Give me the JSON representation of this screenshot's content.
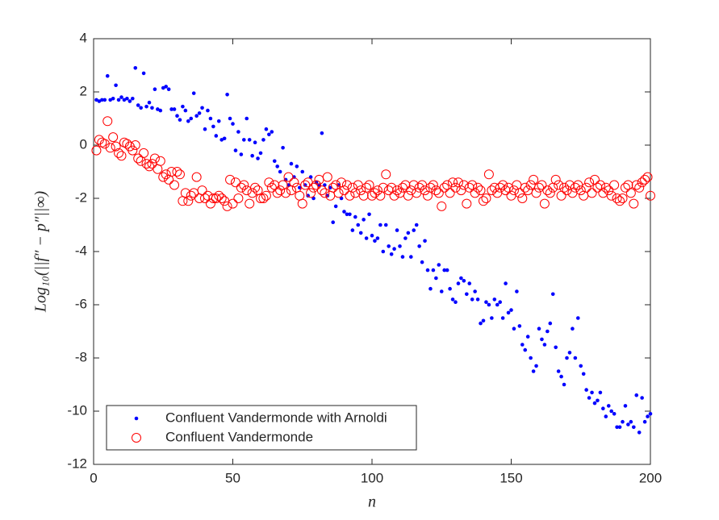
{
  "chart_data": {
    "type": "scatter",
    "x_label": "n",
    "y_label": "Log₁₀(||f″ − p″||∞)",
    "xlim": [
      0,
      200
    ],
    "xticks": [
      0,
      50,
      100,
      150,
      200
    ],
    "ylim": [
      -12,
      4
    ],
    "yticks": [
      -12,
      -10,
      -8,
      -6,
      -4,
      -2,
      0,
      2,
      4
    ],
    "grid": false,
    "legend": "lower left",
    "x": [
      1,
      2,
      3,
      4,
      5,
      6,
      7,
      8,
      9,
      10,
      11,
      12,
      13,
      14,
      15,
      16,
      17,
      18,
      19,
      20,
      21,
      22,
      23,
      24,
      25,
      26,
      27,
      28,
      29,
      30,
      31,
      32,
      33,
      34,
      35,
      36,
      37,
      38,
      39,
      40,
      41,
      42,
      43,
      44,
      45,
      46,
      47,
      48,
      49,
      50,
      51,
      52,
      53,
      54,
      55,
      56,
      57,
      58,
      59,
      60,
      61,
      62,
      63,
      64,
      65,
      66,
      67,
      68,
      69,
      70,
      71,
      72,
      73,
      74,
      75,
      76,
      77,
      78,
      79,
      80,
      81,
      82,
      83,
      84,
      85,
      86,
      87,
      88,
      89,
      90,
      91,
      92,
      93,
      94,
      95,
      96,
      97,
      98,
      99,
      100,
      101,
      102,
      103,
      104,
      105,
      106,
      107,
      108,
      109,
      110,
      111,
      112,
      113,
      114,
      115,
      116,
      117,
      118,
      119,
      120,
      121,
      122,
      123,
      124,
      125,
      126,
      127,
      128,
      129,
      130,
      131,
      132,
      133,
      134,
      135,
      136,
      137,
      138,
      139,
      140,
      141,
      142,
      143,
      144,
      145,
      146,
      147,
      148,
      149,
      150,
      151,
      152,
      153,
      154,
      155,
      156,
      157,
      158,
      159,
      160,
      161,
      162,
      163,
      164,
      165,
      166,
      167,
      168,
      169,
      170,
      171,
      172,
      173,
      174,
      175,
      176,
      177,
      178,
      179,
      180,
      181,
      182,
      183,
      184,
      185,
      186,
      187,
      188,
      189,
      190,
      191,
      192,
      193,
      194,
      195,
      196,
      197,
      198,
      199,
      200
    ],
    "series": [
      {
        "name": "Confluent Vandermonde with Arnoldi",
        "color": "#0000ff",
        "marker": "dot",
        "values": [
          1.7,
          1.65,
          1.7,
          1.7,
          2.6,
          1.7,
          1.75,
          2.25,
          1.7,
          1.8,
          1.7,
          1.75,
          1.65,
          1.75,
          2.9,
          1.5,
          1.4,
          2.7,
          1.45,
          1.6,
          1.4,
          2.1,
          1.35,
          1.3,
          2.15,
          2.2,
          2.1,
          1.35,
          1.35,
          1.1,
          0.95,
          1.45,
          1.3,
          0.9,
          1.0,
          1.95,
          1.1,
          1.2,
          1.4,
          0.6,
          1.3,
          1.0,
          0.7,
          0.35,
          0.9,
          0.2,
          0.25,
          1.9,
          1.0,
          0.8,
          -0.2,
          0.5,
          -0.35,
          0.2,
          1.0,
          0.2,
          -0.4,
          0.1,
          -0.5,
          -0.3,
          0.2,
          0.6,
          0.4,
          0.5,
          -0.6,
          -0.8,
          -1.0,
          -0.1,
          -1.3,
          -1.5,
          -0.7,
          -1.2,
          -0.8,
          -1.6,
          -1.0,
          -1.5,
          -1.9,
          -1.2,
          -2.0,
          -1.4,
          -1.5,
          0.45,
          -1.5,
          -1.9,
          -1.6,
          -2.9,
          -2.3,
          -1.5,
          -2.0,
          -2.5,
          -2.6,
          -2.6,
          -3.2,
          -2.7,
          -3.0,
          -3.3,
          -2.8,
          -3.5,
          -2.6,
          -3.4,
          -3.6,
          -3.5,
          -3.0,
          -4.0,
          -3.0,
          -3.8,
          -4.1,
          -3.9,
          -3.2,
          -3.8,
          -4.2,
          -3.5,
          -3.3,
          -4.2,
          -3.2,
          -3.0,
          -3.8,
          -4.4,
          -3.6,
          -4.7,
          -5.4,
          -4.7,
          -5.0,
          -4.5,
          -5.5,
          -4.7,
          -4.7,
          -5.4,
          -5.8,
          -5.9,
          -5.2,
          -5.0,
          -5.1,
          -5.6,
          -5.2,
          -5.8,
          -5.5,
          -5.8,
          -6.7,
          -6.6,
          -5.9,
          -6.0,
          -6.5,
          -5.8,
          -6.0,
          -5.9,
          -6.5,
          -5.2,
          -6.3,
          -6.2,
          -6.9,
          -5.5,
          -6.8,
          -7.5,
          -7.7,
          -7.2,
          -8.0,
          -8.5,
          -8.3,
          -6.9,
          -7.3,
          -7.5,
          -7.0,
          -6.7,
          -5.6,
          -7.6,
          -8.5,
          -8.7,
          -9.0,
          -8.0,
          -7.8,
          -6.9,
          -8.0,
          -6.5,
          -8.3,
          -8.6,
          -9.2,
          -9.5,
          -9.3,
          -9.7,
          -9.6,
          -9.3,
          -9.9,
          -10.2,
          -9.8,
          -10.0,
          -10.1,
          -10.6,
          -10.6,
          -10.4,
          -9.8,
          -10.5,
          -10.4,
          -10.6,
          -9.4,
          -10.8,
          -9.5,
          -10.4,
          -10.2,
          -10.1
        ]
      },
      {
        "name": "Confluent Vandermonde",
        "color": "#ff0000",
        "marker": "circle",
        "values": [
          -0.2,
          0.2,
          0.1,
          0.05,
          0.9,
          -0.1,
          0.3,
          -0.05,
          -0.3,
          -0.4,
          0.1,
          0.05,
          -0.05,
          -0.2,
          0.0,
          -0.5,
          -0.6,
          -0.3,
          -0.7,
          -0.8,
          -0.7,
          -0.5,
          -0.9,
          -0.6,
          -1.2,
          -1.1,
          -1.3,
          -1.0,
          -1.5,
          -1.0,
          -1.1,
          -2.1,
          -1.8,
          -2.1,
          -1.9,
          -1.8,
          -1.2,
          -2.0,
          -1.7,
          -2.0,
          -1.9,
          -2.2,
          -2.0,
          -2.0,
          -1.9,
          -2.0,
          -2.1,
          -2.3,
          -1.3,
          -2.2,
          -1.4,
          -2.0,
          -1.6,
          -1.5,
          -1.7,
          -2.2,
          -1.8,
          -1.6,
          -1.7,
          -2.0,
          -2.0,
          -1.9,
          -1.4,
          -1.6,
          -1.5,
          -1.8,
          -1.7,
          -1.5,
          -1.8,
          -1.2,
          -1.7,
          -1.4,
          -1.6,
          -1.9,
          -2.2,
          -1.5,
          -1.4,
          -1.8,
          -1.6,
          -1.5,
          -1.3,
          -1.7,
          -1.8,
          -1.2,
          -1.9,
          -1.6,
          -1.5,
          -1.8,
          -1.4,
          -1.7,
          -1.5,
          -1.9,
          -1.6,
          -1.8,
          -1.5,
          -1.7,
          -1.9,
          -1.6,
          -1.5,
          -1.9,
          -1.8,
          -1.7,
          -1.9,
          -1.6,
          -1.1,
          -1.7,
          -1.6,
          -1.9,
          -1.7,
          -1.8,
          -1.6,
          -1.5,
          -1.9,
          -1.7,
          -1.5,
          -1.8,
          -1.6,
          -1.5,
          -1.7,
          -1.9,
          -1.6,
          -1.5,
          -1.7,
          -1.8,
          -2.3,
          -1.6,
          -1.5,
          -1.8,
          -1.4,
          -1.6,
          -1.4,
          -1.7,
          -1.5,
          -2.2,
          -1.6,
          -1.5,
          -1.8,
          -1.6,
          -1.7,
          -2.1,
          -2.0,
          -1.1,
          -1.7,
          -1.6,
          -1.8,
          -1.6,
          -1.5,
          -1.7,
          -1.6,
          -1.9,
          -1.7,
          -1.5,
          -1.8,
          -2.0,
          -1.6,
          -1.7,
          -1.5,
          -1.3,
          -1.8,
          -1.6,
          -1.5,
          -2.2,
          -1.7,
          -1.8,
          -1.6,
          -1.3,
          -1.5,
          -1.9,
          -1.6,
          -1.7,
          -1.5,
          -1.8,
          -1.6,
          -1.5,
          -1.7,
          -1.9,
          -1.6,
          -1.4,
          -1.8,
          -1.3,
          -1.6,
          -1.5,
          -1.8,
          -1.6,
          -1.7,
          -1.9,
          -1.5,
          -2.0,
          -2.1,
          -2.0,
          -1.6,
          -1.5,
          -1.8,
          -2.2,
          -1.5,
          -1.6,
          -1.4,
          -1.3,
          -1.2,
          -1.9
        ]
      }
    ]
  }
}
